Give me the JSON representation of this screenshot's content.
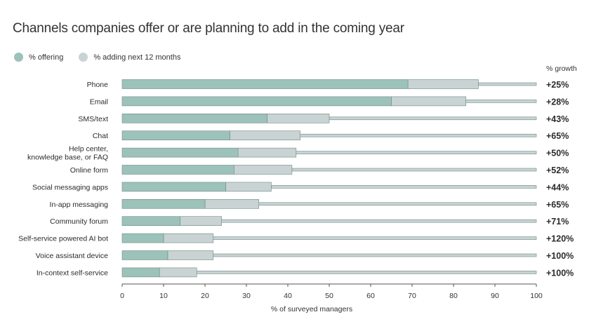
{
  "title": "Channels companies offer or are planning to add in the coming year",
  "legend": {
    "offering_label": "% offering",
    "adding_label": "% adding next 12 months"
  },
  "growth_header": "% growth",
  "colors": {
    "offering": "#9cc2b9",
    "adding": "#c9d3d3",
    "remainder": "#c9d3d3",
    "outline": "#6f8a85"
  },
  "chart_data": {
    "type": "bar",
    "orientation": "horizontal",
    "stacked": true,
    "title": "Channels companies offer or are planning to add in the coming year",
    "xlabel": "% of surveyed managers",
    "ylabel": "",
    "xlim": [
      0,
      100
    ],
    "xticks": [
      0,
      10,
      20,
      30,
      40,
      50,
      60,
      70,
      80,
      90,
      100
    ],
    "categories": [
      "Phone",
      "Email",
      "SMS/text",
      "Chat",
      "Help center,\nknowledge base, or FAQ",
      "Online form",
      "Social messaging apps",
      "In-app messaging",
      "Community forum",
      "Self-service powered AI bot",
      "Voice assistant device",
      "In-context self-service"
    ],
    "series": [
      {
        "name": "% offering",
        "values": [
          69,
          65,
          35,
          26,
          28,
          27,
          25,
          20,
          14,
          10,
          11,
          9
        ]
      },
      {
        "name": "% adding next 12 months",
        "values": [
          17,
          18,
          15,
          17,
          14,
          14,
          11,
          13,
          10,
          12,
          11,
          9
        ]
      }
    ],
    "growth": [
      "+25%",
      "+28%",
      "+43%",
      "+65%",
      "+50%",
      "+52%",
      "+44%",
      "+65%",
      "+71%",
      "+120%",
      "+100%",
      "+100%"
    ],
    "legend_position": "top-left",
    "grid": false
  }
}
